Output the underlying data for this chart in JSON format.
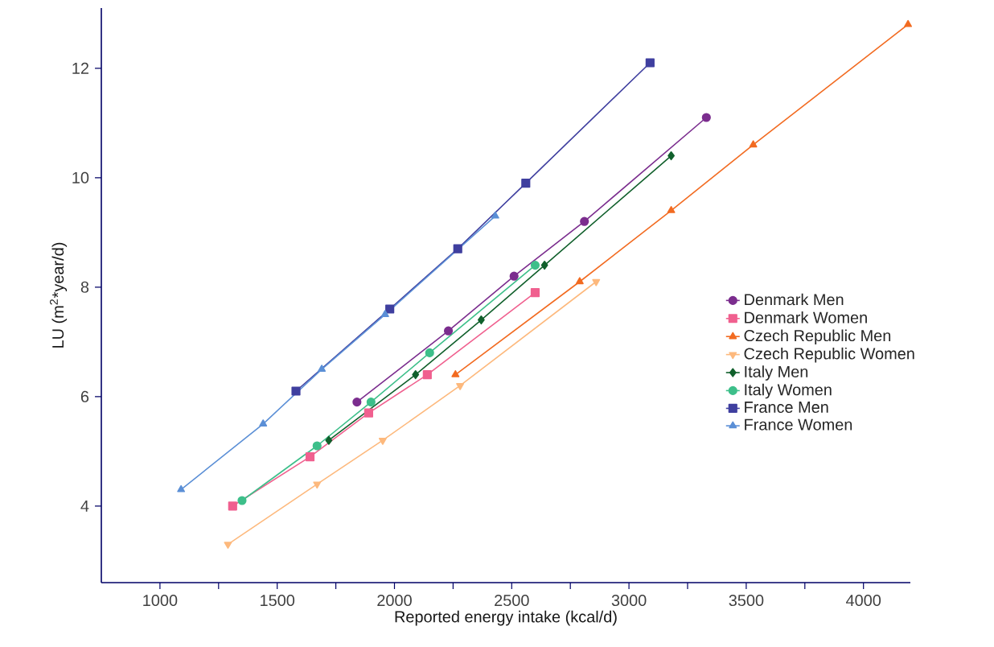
{
  "chart_data": {
    "type": "line",
    "xlabel": "Reported energy intake (kcal/d)",
    "ylabel": "LU (m$^{2}$*year/d)",
    "xlim": [
      750,
      4200
    ],
    "ylim": [
      2.6,
      13.1
    ],
    "xticks": [
      1000,
      {
        "value": 1250,
        "label": null
      },
      1500,
      {
        "value": 1750,
        "label": null
      },
      2000,
      {
        "value": 2250,
        "label": null
      },
      2500,
      {
        "value": 2750,
        "label": null
      },
      3000,
      {
        "value": 3250,
        "label": null
      },
      3500,
      {
        "value": 3750,
        "label": null
      },
      4000
    ],
    "yticks": [
      4,
      6,
      8,
      10,
      12
    ],
    "legend": "right",
    "series": [
      {
        "name": "Denmark Men",
        "color": "#7b2d8e",
        "marker": "circle",
        "x": [
          1840,
          2230,
          2510,
          2810,
          3330
        ],
        "values": [
          5.9,
          7.2,
          8.2,
          9.2,
          11.1
        ]
      },
      {
        "name": "Denmark Women",
        "color": "#f0608f",
        "marker": "square",
        "x": [
          1310,
          1640,
          1890,
          2140,
          2600
        ],
        "values": [
          4.0,
          4.9,
          5.7,
          6.4,
          7.9
        ]
      },
      {
        "name": "Czech Republic Men",
        "color": "#f26b21",
        "marker": "triangle",
        "x": [
          2260,
          2790,
          3180,
          3530,
          4190
        ],
        "values": [
          6.4,
          8.1,
          9.4,
          10.6,
          12.8
        ]
      },
      {
        "name": "Czech Republic Women",
        "color": "#fdb97d",
        "marker": "triangle-down",
        "x": [
          1290,
          1670,
          1950,
          2280,
          2860
        ],
        "values": [
          3.3,
          4.4,
          5.2,
          6.2,
          8.1
        ]
      },
      {
        "name": "Italy Men",
        "color": "#11602c",
        "marker": "diamond",
        "x": [
          1720,
          2090,
          2370,
          2640,
          3180
        ],
        "values": [
          5.2,
          6.4,
          7.4,
          8.4,
          10.4
        ]
      },
      {
        "name": "Italy Women",
        "color": "#3dbf8a",
        "marker": "circle",
        "x": [
          1350,
          1670,
          1900,
          2150,
          2600
        ],
        "values": [
          4.1,
          5.1,
          5.9,
          6.8,
          8.4
        ]
      },
      {
        "name": "France Men",
        "color": "#3f3f9f",
        "marker": "square",
        "x": [
          1580,
          1980,
          2270,
          2560,
          3090
        ],
        "values": [
          6.1,
          7.6,
          8.7,
          9.9,
          12.1
        ]
      },
      {
        "name": "France Women",
        "color": "#5b8fd6",
        "marker": "triangle",
        "x": [
          1090,
          1440,
          1690,
          1960,
          2430
        ],
        "values": [
          4.3,
          5.5,
          6.5,
          7.5,
          9.3
        ]
      }
    ]
  }
}
